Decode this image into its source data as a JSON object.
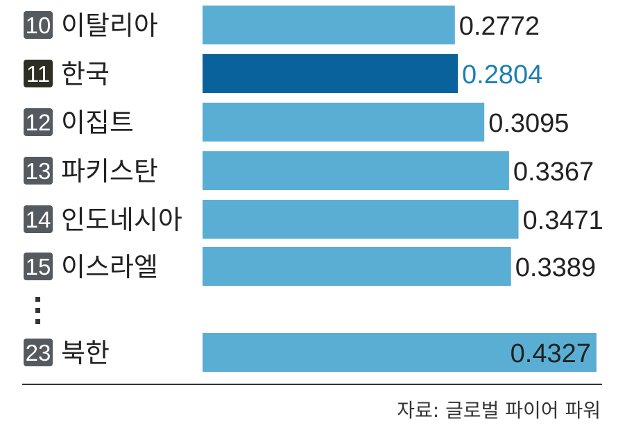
{
  "chart_data": {
    "type": "bar",
    "orientation": "horizontal",
    "source": "자료: 글로벌 파이어 파워",
    "rows": [
      {
        "rank": "10",
        "name": "이탈리아",
        "value": 0.2772,
        "label": "0.2772",
        "highlight": false
      },
      {
        "rank": "11",
        "name": "한국",
        "value": 0.2804,
        "label": "0.2804",
        "highlight": true
      },
      {
        "rank": "12",
        "name": "이집트",
        "value": 0.3095,
        "label": "0.3095",
        "highlight": false
      },
      {
        "rank": "13",
        "name": "파키스탄",
        "value": 0.3367,
        "label": "0.3367",
        "highlight": false
      },
      {
        "rank": "14",
        "name": "인도네시아",
        "value": 0.3471,
        "label": "0.3471",
        "highlight": false
      },
      {
        "rank": "15",
        "name": "이스라엘",
        "value": 0.3389,
        "label": "0.3389",
        "highlight": false
      },
      {
        "rank": "23",
        "name": "북한",
        "value": 0.4327,
        "label": "0.4327",
        "highlight": false
      }
    ],
    "gap_after_index": 5,
    "colors": {
      "bar": "#5aaed4",
      "bar_highlight": "#0a629c",
      "rank_badge": "#555a60",
      "rank_badge_highlight": "#2e2e22",
      "text": "#222222",
      "value_highlight": "#1a7fb6"
    }
  }
}
